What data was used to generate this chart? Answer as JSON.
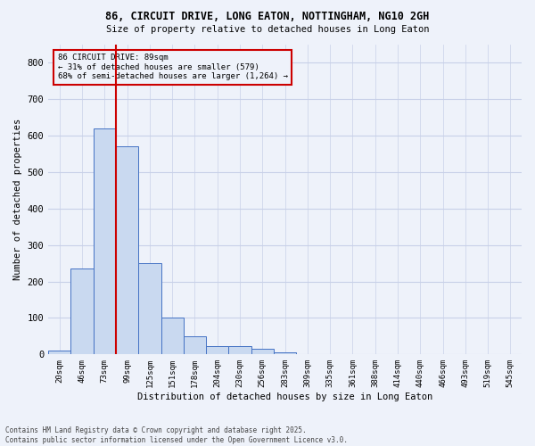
{
  "title1": "86, CIRCUIT DRIVE, LONG EATON, NOTTINGHAM, NG10 2GH",
  "title2": "Size of property relative to detached houses in Long Eaton",
  "xlabel": "Distribution of detached houses by size in Long Eaton",
  "ylabel": "Number of detached properties",
  "footer1": "Contains HM Land Registry data © Crown copyright and database right 2025.",
  "footer2": "Contains public sector information licensed under the Open Government Licence v3.0.",
  "annotation_line1": "86 CIRCUIT DRIVE: 89sqm",
  "annotation_line2": "← 31% of detached houses are smaller (579)",
  "annotation_line3": "68% of semi-detached houses are larger (1,264) →",
  "bar_color": "#c9d9f0",
  "bar_edge_color": "#4472c4",
  "ref_line_color": "#cc0000",
  "annotation_box_color": "#cc0000",
  "background_color": "#eef2fa",
  "grid_color": "#c8d0e8",
  "categories": [
    "20sqm",
    "46sqm",
    "73sqm",
    "99sqm",
    "125sqm",
    "151sqm",
    "178sqm",
    "204sqm",
    "230sqm",
    "256sqm",
    "283sqm",
    "309sqm",
    "335sqm",
    "361sqm",
    "388sqm",
    "414sqm",
    "440sqm",
    "466sqm",
    "493sqm",
    "519sqm",
    "545sqm"
  ],
  "values": [
    10,
    235,
    620,
    570,
    250,
    100,
    50,
    22,
    22,
    15,
    5,
    2,
    0,
    0,
    0,
    0,
    0,
    0,
    0,
    0,
    0
  ],
  "ref_line_bin_index": 3,
  "ylim": [
    0,
    850
  ],
  "yticks": [
    0,
    100,
    200,
    300,
    400,
    500,
    600,
    700,
    800
  ]
}
